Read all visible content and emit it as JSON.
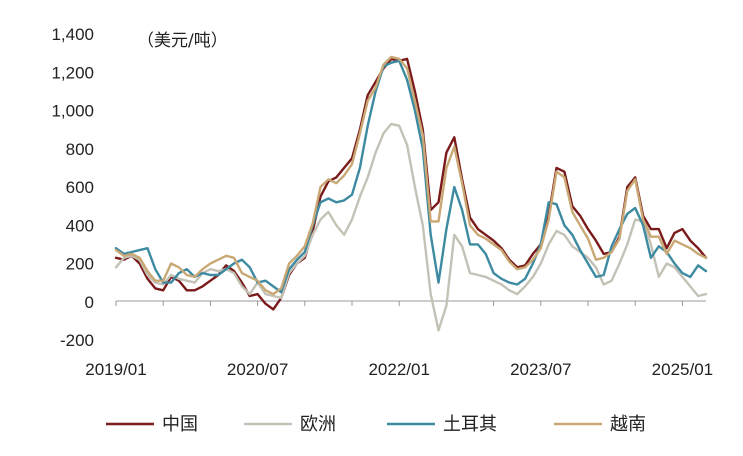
{
  "chart_data": {
    "type": "line",
    "unit_label": "（美元/吨）",
    "ylim": [
      -200,
      1400
    ],
    "yticks": [
      -200,
      0,
      200,
      400,
      600,
      800,
      1000,
      1200,
      1400
    ],
    "ytick_labels": [
      "-200",
      "0",
      "200",
      "400",
      "600",
      "800",
      "1,000",
      "1,200",
      "1,400"
    ],
    "xticks": [
      "2019/01",
      "2020/07",
      "2022/01",
      "2023/07",
      "2025/01"
    ],
    "x": [
      "2019/01",
      "2019/02",
      "2019/03",
      "2019/04",
      "2019/05",
      "2019/06",
      "2019/07",
      "2019/08",
      "2019/09",
      "2019/10",
      "2019/11",
      "2019/12",
      "2020/01",
      "2020/02",
      "2020/03",
      "2020/04",
      "2020/05",
      "2020/06",
      "2020/07",
      "2020/08",
      "2020/09",
      "2020/10",
      "2020/11",
      "2020/12",
      "2021/01",
      "2021/02",
      "2021/03",
      "2021/04",
      "2021/05",
      "2021/06",
      "2021/07",
      "2021/08",
      "2021/09",
      "2021/10",
      "2021/11",
      "2021/12",
      "2022/01",
      "2022/02",
      "2022/03",
      "2022/04",
      "2022/05",
      "2022/06",
      "2022/07",
      "2022/08",
      "2022/09",
      "2022/10",
      "2022/11",
      "2022/12",
      "2023/01",
      "2023/02",
      "2023/03",
      "2023/04",
      "2023/05",
      "2023/06",
      "2023/07",
      "2023/08",
      "2023/09",
      "2023/10",
      "2023/11",
      "2023/12",
      "2024/01",
      "2024/02",
      "2024/03",
      "2024/04",
      "2024/05",
      "2024/06",
      "2024/07",
      "2024/08",
      "2024/09",
      "2024/10",
      "2024/11",
      "2024/12",
      "2025/01",
      "2025/02",
      "2025/03",
      "2025/04"
    ],
    "series": [
      {
        "name": "中国",
        "color": "#7a1a1a",
        "values": [
          230,
          220,
          240,
          200,
          120,
          70,
          60,
          130,
          110,
          60,
          60,
          80,
          110,
          140,
          190,
          160,
          100,
          30,
          40,
          -10,
          -40,
          20,
          140,
          200,
          230,
          370,
          550,
          630,
          650,
          700,
          750,
          900,
          1080,
          1150,
          1220,
          1270,
          1260,
          1270,
          1100,
          900,
          480,
          520,
          780,
          860,
          640,
          440,
          380,
          350,
          320,
          280,
          220,
          180,
          190,
          250,
          300,
          450,
          700,
          680,
          500,
          450,
          380,
          320,
          250,
          260,
          340,
          600,
          650,
          450,
          380,
          380,
          280,
          360,
          380,
          320,
          280,
          230
        ]
      },
      {
        "name": "欧洲",
        "color": "#c4c2b6",
        "values": [
          180,
          230,
          240,
          220,
          140,
          100,
          90,
          140,
          120,
          110,
          100,
          150,
          170,
          160,
          170,
          150,
          80,
          40,
          100,
          40,
          30,
          20,
          150,
          200,
          240,
          350,
          430,
          470,
          400,
          350,
          430,
          550,
          650,
          780,
          880,
          930,
          920,
          820,
          600,
          400,
          40,
          -150,
          -20,
          350,
          290,
          150,
          140,
          130,
          110,
          90,
          60,
          40,
          80,
          130,
          200,
          300,
          370,
          350,
          290,
          260,
          230,
          180,
          90,
          110,
          200,
          300,
          430,
          420,
          300,
          130,
          200,
          180,
          130,
          80,
          30,
          40
        ]
      },
      {
        "name": "土耳其",
        "color": "#3d8aa1",
        "values": [
          280,
          250,
          260,
          270,
          280,
          170,
          100,
          100,
          150,
          170,
          130,
          150,
          140,
          140,
          170,
          200,
          220,
          180,
          100,
          110,
          80,
          50,
          170,
          220,
          260,
          400,
          520,
          540,
          520,
          530,
          560,
          700,
          920,
          1100,
          1230,
          1250,
          1260,
          1160,
          1000,
          800,
          350,
          100,
          380,
          600,
          480,
          300,
          300,
          250,
          150,
          120,
          100,
          90,
          120,
          200,
          300,
          520,
          510,
          400,
          350,
          270,
          200,
          130,
          140,
          290,
          380,
          460,
          490,
          400,
          230,
          290,
          260,
          200,
          150,
          130,
          190,
          160
        ]
      },
      {
        "name": "越南",
        "color": "#c9a875",
        "values": [
          270,
          240,
          250,
          230,
          160,
          110,
          110,
          200,
          180,
          140,
          130,
          170,
          200,
          220,
          240,
          230,
          150,
          130,
          110,
          60,
          40,
          70,
          200,
          240,
          290,
          410,
          600,
          640,
          620,
          660,
          720,
          880,
          1050,
          1120,
          1240,
          1280,
          1270,
          1220,
          1050,
          870,
          420,
          420,
          700,
          810,
          620,
          400,
          350,
          330,
          300,
          270,
          210,
          170,
          180,
          220,
          280,
          430,
          680,
          650,
          470,
          400,
          330,
          220,
          230,
          260,
          330,
          580,
          640,
          430,
          340,
          340,
          250,
          320,
          300,
          280,
          250,
          230
        ]
      }
    ]
  }
}
